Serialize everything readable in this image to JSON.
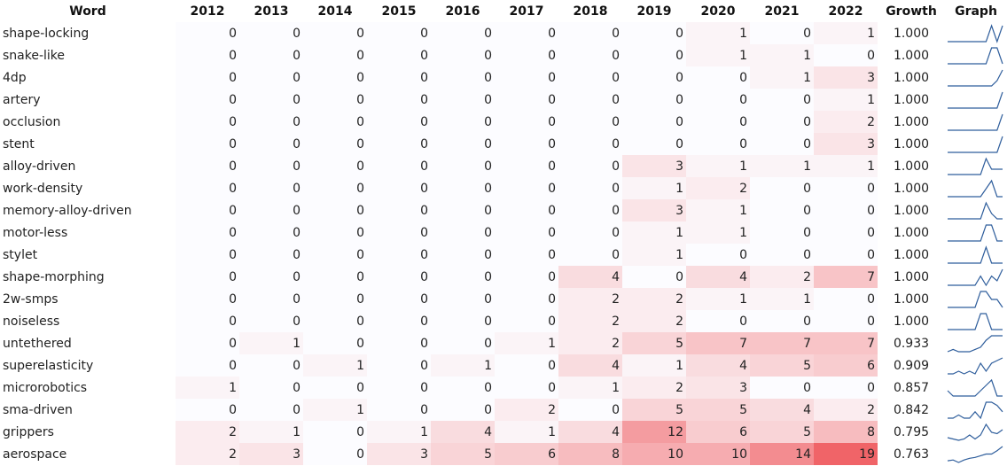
{
  "header": {
    "word": "Word",
    "years": [
      "2012",
      "2013",
      "2014",
      "2015",
      "2016",
      "2017",
      "2018",
      "2019",
      "2020",
      "2021",
      "2022"
    ],
    "growth": "Growth",
    "graph": "Graph"
  },
  "colors": {
    "max_cell": "#f06468",
    "min_cell": "#fcfcff",
    "sparkline": "#2f5e9c"
  },
  "max_value": 19,
  "rows": [
    {
      "word": "shape-locking",
      "values": [
        0,
        0,
        0,
        0,
        0,
        0,
        0,
        0,
        1,
        0,
        1
      ],
      "growth": "1.000"
    },
    {
      "word": "snake-like",
      "values": [
        0,
        0,
        0,
        0,
        0,
        0,
        0,
        0,
        1,
        1,
        0
      ],
      "growth": "1.000"
    },
    {
      "word": "4dp",
      "values": [
        0,
        0,
        0,
        0,
        0,
        0,
        0,
        0,
        0,
        1,
        3
      ],
      "growth": "1.000"
    },
    {
      "word": "artery",
      "values": [
        0,
        0,
        0,
        0,
        0,
        0,
        0,
        0,
        0,
        0,
        1
      ],
      "growth": "1.000"
    },
    {
      "word": "occlusion",
      "values": [
        0,
        0,
        0,
        0,
        0,
        0,
        0,
        0,
        0,
        0,
        2
      ],
      "growth": "1.000"
    },
    {
      "word": "stent",
      "values": [
        0,
        0,
        0,
        0,
        0,
        0,
        0,
        0,
        0,
        0,
        3
      ],
      "growth": "1.000"
    },
    {
      "word": "alloy-driven",
      "values": [
        0,
        0,
        0,
        0,
        0,
        0,
        0,
        3,
        1,
        1,
        1
      ],
      "growth": "1.000"
    },
    {
      "word": "work-density",
      "values": [
        0,
        0,
        0,
        0,
        0,
        0,
        0,
        1,
        2,
        0,
        0
      ],
      "growth": "1.000"
    },
    {
      "word": "memory-alloy-driven",
      "values": [
        0,
        0,
        0,
        0,
        0,
        0,
        0,
        3,
        1,
        0,
        0
      ],
      "growth": "1.000"
    },
    {
      "word": "motor-less",
      "values": [
        0,
        0,
        0,
        0,
        0,
        0,
        0,
        1,
        1,
        0,
        0
      ],
      "growth": "1.000"
    },
    {
      "word": "stylet",
      "values": [
        0,
        0,
        0,
        0,
        0,
        0,
        0,
        1,
        0,
        0,
        0
      ],
      "growth": "1.000"
    },
    {
      "word": "shape-morphing",
      "values": [
        0,
        0,
        0,
        0,
        0,
        0,
        4,
        0,
        4,
        2,
        7
      ],
      "growth": "1.000"
    },
    {
      "word": "2w-smps",
      "values": [
        0,
        0,
        0,
        0,
        0,
        0,
        2,
        2,
        1,
        1,
        0
      ],
      "growth": "1.000"
    },
    {
      "word": "noiseless",
      "values": [
        0,
        0,
        0,
        0,
        0,
        0,
        2,
        2,
        0,
        0,
        0
      ],
      "growth": "1.000"
    },
    {
      "word": "untethered",
      "values": [
        0,
        1,
        0,
        0,
        0,
        1,
        2,
        5,
        7,
        7,
        7
      ],
      "growth": "0.933"
    },
    {
      "word": "superelasticity",
      "values": [
        0,
        0,
        1,
        0,
        1,
        0,
        4,
        1,
        4,
        5,
        6
      ],
      "growth": "0.909"
    },
    {
      "word": "microrobotics",
      "values": [
        1,
        0,
        0,
        0,
        0,
        0,
        1,
        2,
        3,
        0,
        0
      ],
      "growth": "0.857"
    },
    {
      "word": "sma-driven",
      "values": [
        0,
        0,
        1,
        0,
        0,
        2,
        0,
        5,
        5,
        4,
        2
      ],
      "growth": "0.842"
    },
    {
      "word": "grippers",
      "values": [
        2,
        1,
        0,
        1,
        4,
        1,
        4,
        12,
        6,
        5,
        8
      ],
      "growth": "0.795"
    },
    {
      "word": "aerospace",
      "values": [
        2,
        3,
        0,
        3,
        5,
        6,
        8,
        10,
        10,
        14,
        19
      ],
      "growth": "0.763"
    }
  ],
  "chart_data": {
    "type": "heatmap",
    "x": [
      "2012",
      "2013",
      "2014",
      "2015",
      "2016",
      "2017",
      "2018",
      "2019",
      "2020",
      "2021",
      "2022"
    ],
    "y": [
      "shape-locking",
      "snake-like",
      "4dp",
      "artery",
      "occlusion",
      "stent",
      "alloy-driven",
      "work-density",
      "memory-alloy-driven",
      "motor-less",
      "stylet",
      "shape-morphing",
      "2w-smps",
      "noiseless",
      "untethered",
      "superelasticity",
      "microrobotics",
      "sma-driven",
      "grippers",
      "aerospace"
    ],
    "columns": [
      "Word",
      "2012",
      "2013",
      "2014",
      "2015",
      "2016",
      "2017",
      "2018",
      "2019",
      "2020",
      "2021",
      "2022",
      "Growth",
      "Graph"
    ],
    "growth": [
      1.0,
      1.0,
      1.0,
      1.0,
      1.0,
      1.0,
      1.0,
      1.0,
      1.0,
      1.0,
      1.0,
      1.0,
      1.0,
      1.0,
      0.933,
      0.909,
      0.857,
      0.842,
      0.795,
      0.763
    ],
    "values_ref": "rows[].values"
  }
}
